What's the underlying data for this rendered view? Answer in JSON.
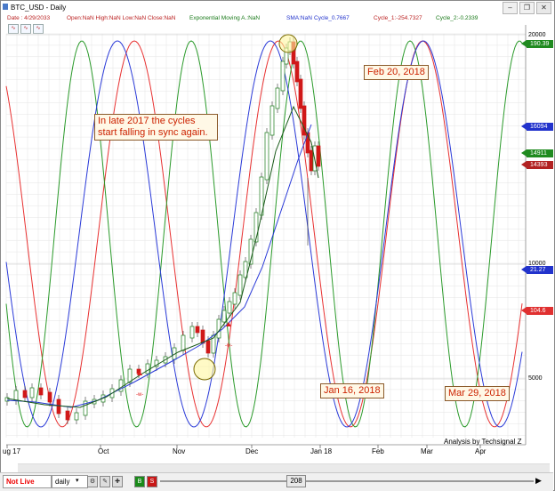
{
  "window": {
    "title": "BTC_USD - Daily",
    "buttons": [
      "–",
      "❐",
      "✕"
    ]
  },
  "infobar": {
    "date": "Date : 4/29/2033",
    "ohlc": "Open:NaN High:NaN Low:NaN Close:NaN",
    "ema": "Exponential Moving A.:NaN",
    "sma": "SMA:NaN",
    "cycle": "Cycle_0.7667",
    "cycle1": "Cycle_1:-254.7327",
    "cycle2": "Cycle_2:-0.2339"
  },
  "colors": {
    "red_cycle": "#e83030",
    "green_cycle": "#2a9a2a",
    "blue_cycle": "#2a3ad8",
    "candle_up": "#1a7a1a",
    "candle_down": "#d01818",
    "note_text": "#cc2200",
    "note_border": "#8b5a2b"
  },
  "price_axis": {
    "labels": [
      "20000",
      "10000",
      "5000"
    ],
    "tags": [
      {
        "text": "190.39",
        "color": "#1f8a1f"
      },
      {
        "text": "16094",
        "color": "#2233cc"
      },
      {
        "text": "14911",
        "color": "#1f8a1f"
      },
      {
        "text": "14393",
        "color": "#b22222"
      },
      {
        "text": "21.27",
        "color": "#2233cc"
      },
      {
        "text": "104.6",
        "color": "#e03030"
      }
    ]
  },
  "time_axis": {
    "labels": [
      "ug 17",
      "Oct",
      "Nov",
      "Dec",
      "Jan 18",
      "Feb",
      "Mar",
      "Apr"
    ]
  },
  "annotations": {
    "note_main": "In late 2017 the cycles start falling in sync again.",
    "note_feb": "Feb 20, 2018",
    "note_jan": "Jan 16, 2018",
    "note_mar": "Mar 29, 2018",
    "marker_w": "-w-"
  },
  "credit": "Analysis by Techsignal Z",
  "bottombar": {
    "live": "Not Live",
    "interval": "daily",
    "buttons": [
      {
        "label": "B",
        "color": "#1a8a1a"
      },
      {
        "label": "S",
        "color": "#c81818"
      }
    ],
    "zoom": "208"
  }
}
